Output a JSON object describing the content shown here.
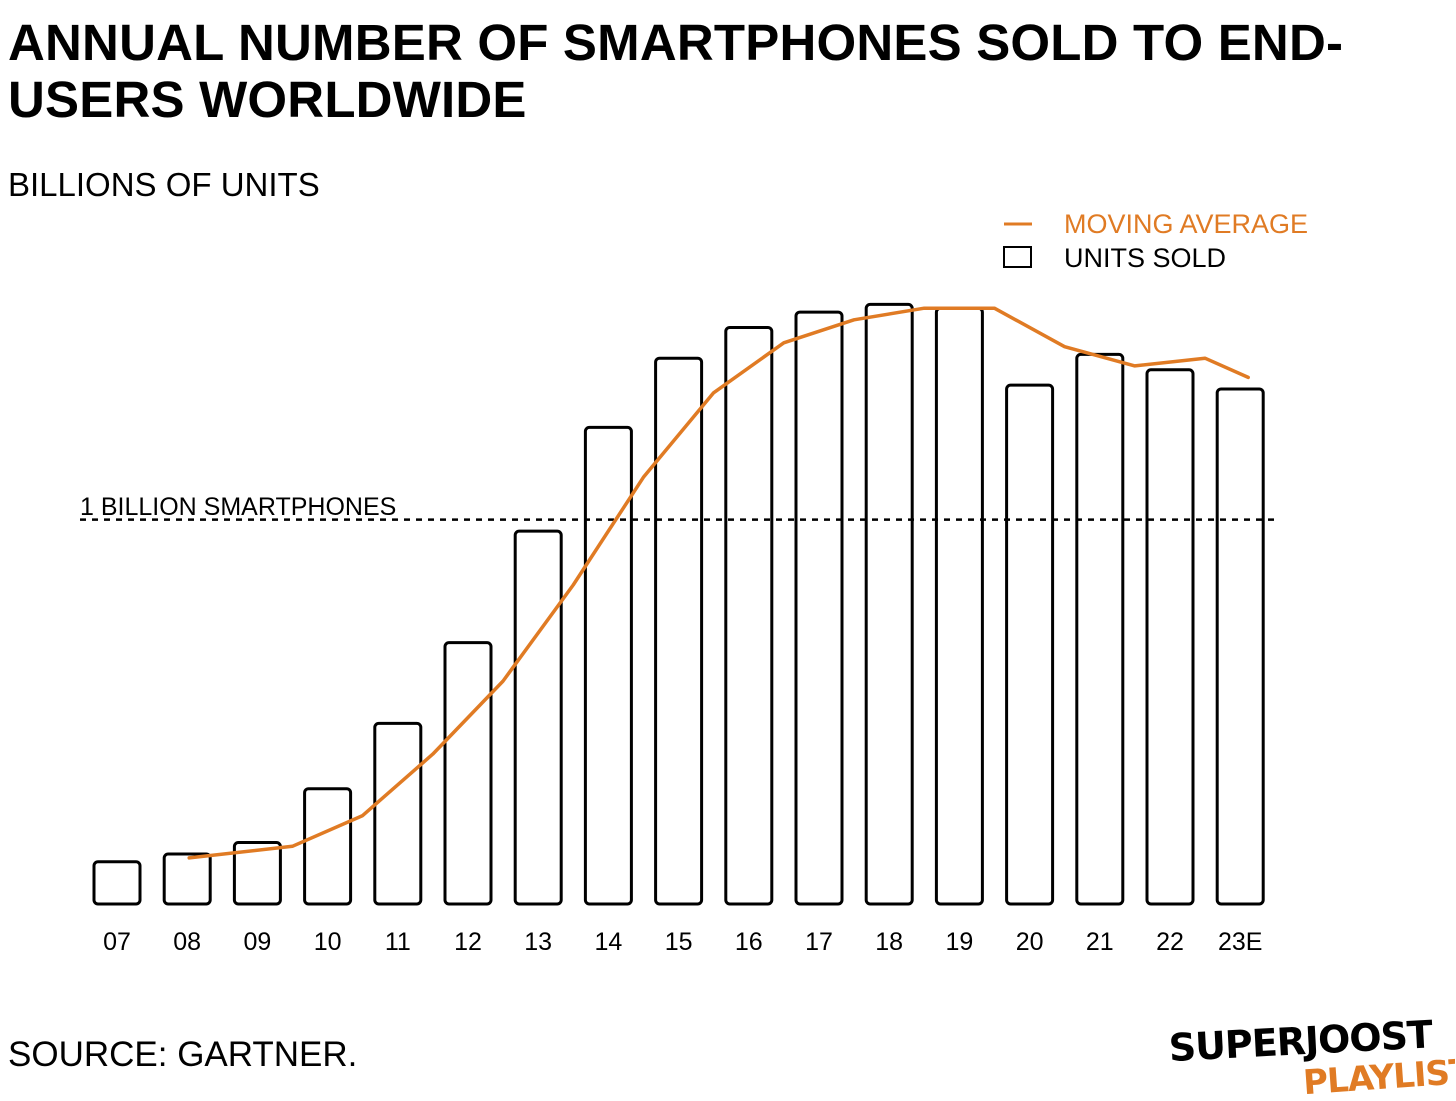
{
  "colors": {
    "accent": "#E07B24",
    "bar_stroke": "#000000",
    "bar_fill": "#FFFFFF"
  },
  "header": {
    "title": "ANNUAL NUMBER OF SMARTPHONES SOLD TO END-USERS WORLDWIDE",
    "subtitle": "BILLIONS OF UNITS"
  },
  "legend": {
    "moving_average": "MOVING AVERAGE",
    "units_sold": "UNITS SOLD"
  },
  "reference_line": {
    "label": "1 BILLION SMARTPHONES",
    "value": 1.0
  },
  "footer": {
    "source": "SOURCE: GARTNER.",
    "logo_line1": "SUPERJOOST",
    "logo_line2": "PLAYLIST"
  },
  "chart_data": {
    "type": "bar",
    "title": "ANNUAL NUMBER OF SMARTPHONES SOLD TO END-USERS WORLDWIDE",
    "subtitle": "BILLIONS OF UNITS",
    "categories": [
      "07",
      "08",
      "09",
      "10",
      "11",
      "12",
      "13",
      "14",
      "15",
      "16",
      "17",
      "18",
      "19",
      "20",
      "21",
      "22",
      "23E"
    ],
    "series": [
      {
        "name": "UNITS SOLD",
        "type": "bar",
        "values": [
          0.11,
          0.13,
          0.16,
          0.3,
          0.47,
          0.68,
          0.97,
          1.24,
          1.42,
          1.5,
          1.54,
          1.56,
          1.55,
          1.35,
          1.43,
          1.39,
          1.34
        ]
      },
      {
        "name": "MOVING AVERAGE",
        "type": "line",
        "values": [
          null,
          0.12,
          0.15,
          0.23,
          0.39,
          0.58,
          0.83,
          1.11,
          1.33,
          1.46,
          1.52,
          1.55,
          1.55,
          1.45,
          1.4,
          1.42,
          1.37
        ]
      }
    ],
    "xlabel": "",
    "ylabel": "",
    "ylim": [
      0,
      1.6
    ],
    "grid": false,
    "legend_position": "top-right",
    "reference_line": {
      "value": 1.0,
      "label": "1 BILLION SMARTPHONES"
    }
  }
}
